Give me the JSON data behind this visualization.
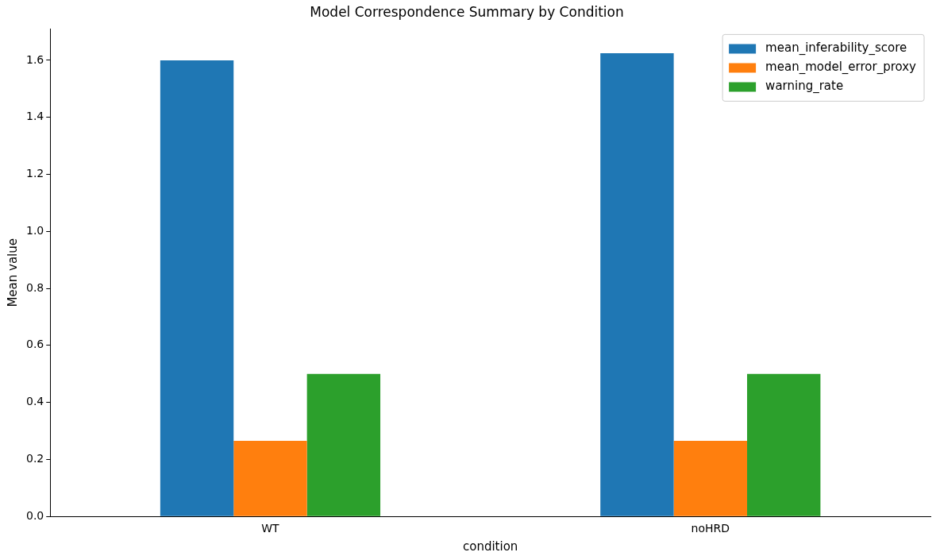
{
  "chart_data": {
    "type": "bar",
    "title": "Model Correspondence Summary by Condition",
    "xlabel": "condition",
    "ylabel": "Mean value",
    "categories": [
      "WT",
      "noHRD"
    ],
    "series": [
      {
        "name": "mean_inferability_score",
        "color": "#1f77b4",
        "values": [
          1.6,
          1.625
        ]
      },
      {
        "name": "mean_model_error_proxy",
        "color": "#ff7f0e",
        "values": [
          0.265,
          0.265
        ]
      },
      {
        "name": "warning_rate",
        "color": "#2ca02c",
        "values": [
          0.5,
          0.5
        ]
      }
    ],
    "ylim": [
      0,
      1.71
    ],
    "yticks": [
      {
        "value": 0,
        "label": "0.0"
      },
      {
        "value": 0.2,
        "label": "0.2"
      },
      {
        "value": 0.4,
        "label": "0.4"
      },
      {
        "value": 0.6,
        "label": "0.6"
      },
      {
        "value": 0.8,
        "label": "0.8"
      },
      {
        "value": 1,
        "label": "1.0"
      },
      {
        "value": 1.2,
        "label": "1.2"
      },
      {
        "value": 1.4,
        "label": "1.4"
      },
      {
        "value": 1.6,
        "label": "1.6"
      }
    ],
    "grid": false,
    "legend": "top right"
  }
}
